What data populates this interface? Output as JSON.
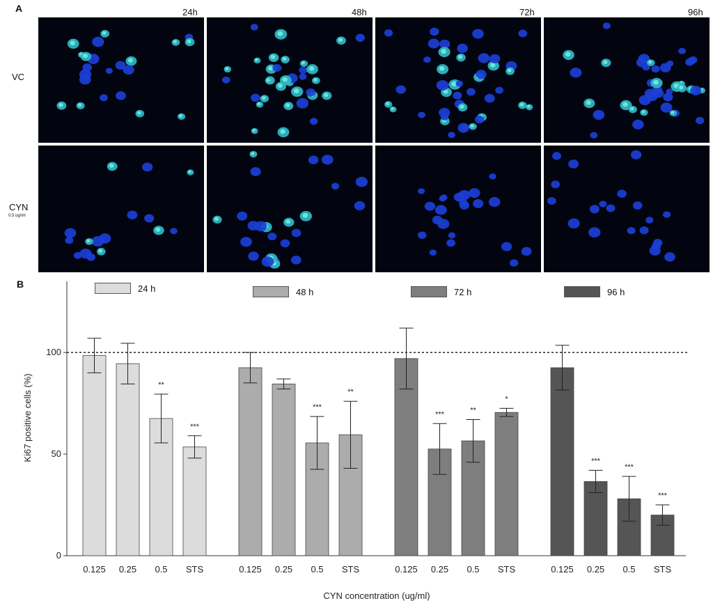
{
  "panel_a": {
    "letter": "A",
    "time_labels": [
      "24h",
      "48h",
      "72h",
      "96h"
    ],
    "row_labels": [
      "VC",
      "CYN"
    ],
    "cyn_sub": "0.5 ug/ml"
  },
  "panel_b": {
    "letter": "B"
  },
  "chart_data": {
    "type": "bar",
    "categories": [
      "0.125",
      "0.25",
      "0.5",
      "STS"
    ],
    "xlabel": "CYN concentration (ug/ml)",
    "ylabel": "Ki67 positive cells (%)",
    "ylim": [
      0,
      135
    ],
    "yticks": [
      0,
      50,
      100
    ],
    "reference_line": 100,
    "legend_position": "top",
    "series": [
      {
        "name": "24 h",
        "color": "#dcdcdc",
        "values": [
          98.5,
          94.5,
          67.5,
          53.5
        ],
        "errors": [
          8.5,
          10,
          12,
          5.5
        ],
        "significance": [
          "",
          "",
          "**",
          "***"
        ]
      },
      {
        "name": "48 h",
        "color": "#acacac",
        "values": [
          92.5,
          84.5,
          55.5,
          59.5
        ],
        "errors": [
          7.5,
          2.5,
          13,
          16.5
        ],
        "significance": [
          "",
          "",
          "***",
          "**"
        ]
      },
      {
        "name": "72 h",
        "color": "#7e7e7e",
        "values": [
          97,
          52.5,
          56.5,
          70.5
        ],
        "errors": [
          15,
          12.5,
          10.5,
          2
        ],
        "significance": [
          "",
          "***",
          "**",
          "*"
        ]
      },
      {
        "name": "96 h",
        "color": "#555555",
        "values": [
          92.5,
          36.5,
          28,
          20
        ],
        "errors": [
          11,
          5.5,
          11,
          5
        ],
        "significance": [
          "",
          "***",
          "***",
          "***"
        ]
      }
    ]
  }
}
